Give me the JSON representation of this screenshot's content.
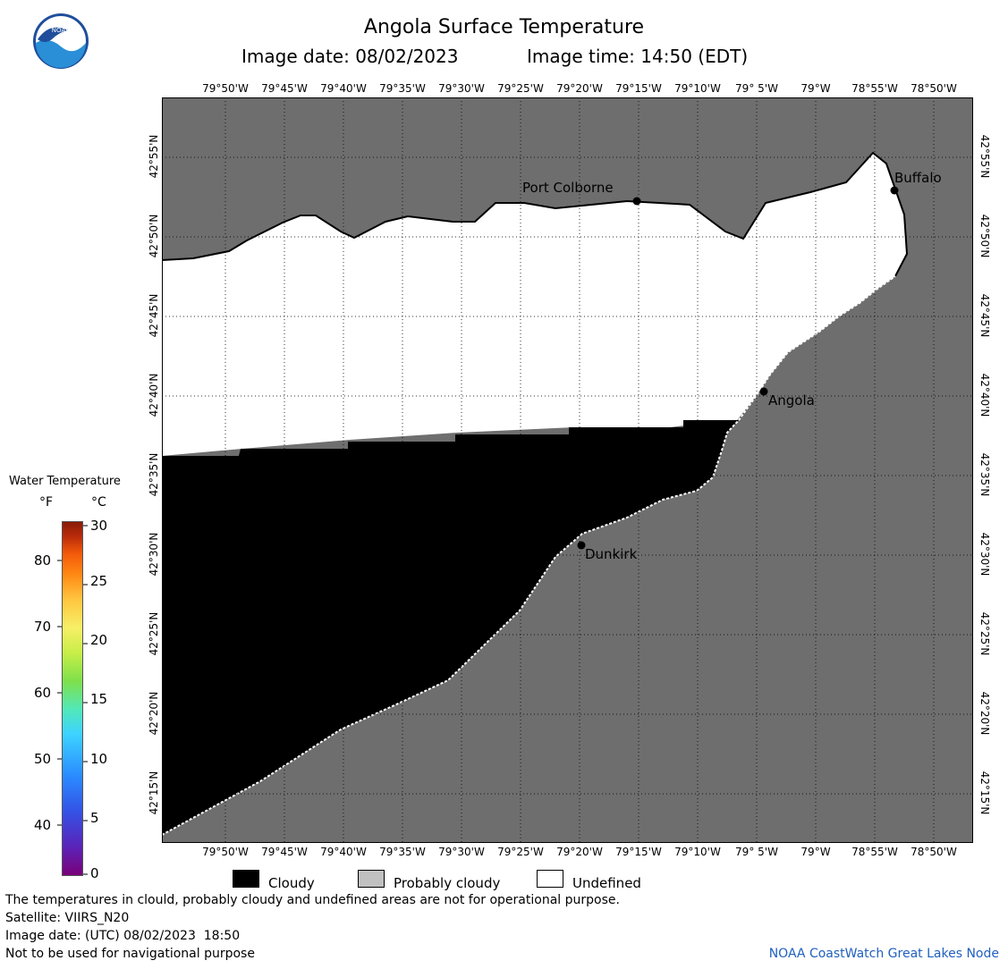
{
  "header": {
    "title": "Angola Surface Temperature",
    "image_date_label": "Image date: 08/02/2023",
    "image_time_label": "Image time: 14:50 (EDT)"
  },
  "map": {
    "lon_labels": [
      "79°50'W",
      "79°45'W",
      "79°40'W",
      "79°35'W",
      "79°30'W",
      "79°25'W",
      "79°20'W",
      "79°15'W",
      "79°10'W",
      "79° 5'W",
      "79°W",
      "78°55'W",
      "78°50'W"
    ],
    "lat_labels": [
      "42°55'N",
      "42°50'N",
      "42°45'N",
      "42°40'N",
      "42°35'N",
      "42°30'N",
      "42°25'N",
      "42°20'N",
      "42°15'N"
    ],
    "cities": [
      {
        "name": "Port Colborne"
      },
      {
        "name": "Buffalo"
      },
      {
        "name": "Angola"
      },
      {
        "name": "Dunkirk"
      }
    ],
    "colors": {
      "land": "#6e6e6e",
      "cloudy": "#000000",
      "undefined": "#ffffff",
      "probably_cloudy": "#c0c0c0"
    }
  },
  "colorbar": {
    "title": "Water Temperature",
    "unit_f": "°F",
    "unit_c": "°C",
    "f_ticks": [
      "80",
      "70",
      "60",
      "50",
      "40"
    ],
    "c_ticks": [
      "30",
      "25",
      "20",
      "15",
      "10",
      "5",
      "0"
    ]
  },
  "legend": {
    "cloudy": "Cloudy",
    "probably_cloudy": "Probably cloudy",
    "undefined": "Undefined"
  },
  "footer": {
    "disclaimer": "The temperatures in clould, probably cloudy and undefined areas are not for operational purpose.",
    "satellite": "Satellite: VIIRS_N20",
    "utc_date": "Image date: (UTC) 08/02/2023  18:50",
    "navigation_note": "Not to be used for navigational purpose",
    "credit": "NOAA CoastWatch Great Lakes Node"
  }
}
